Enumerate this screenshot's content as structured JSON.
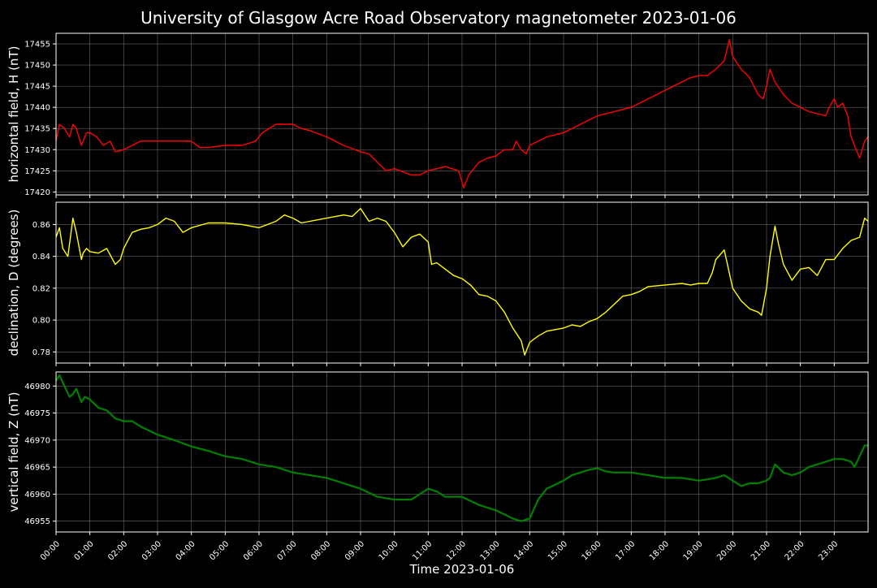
{
  "title": "University of Glasgow Acre Road Observatory magnetometer 2023-01-06",
  "xlabel": "Time 2023-01-06",
  "x_ticks": [
    "00:00",
    "01:00",
    "02:00",
    "03:00",
    "04:00",
    "05:00",
    "06:00",
    "07:00",
    "08:00",
    "09:00",
    "10:00",
    "11:00",
    "12:00",
    "13:00",
    "14:00",
    "15:00",
    "16:00",
    "17:00",
    "18:00",
    "19:00",
    "20:00",
    "21:00",
    "22:00",
    "23:00"
  ],
  "colors": {
    "background": "#000000",
    "grid": "#808080",
    "axes": "#ffffff",
    "H": "#ff0000",
    "D": "#ffff00",
    "Z": "#008000"
  },
  "chart_data": [
    {
      "type": "line",
      "ylabel": "horizontal field, H (nT)",
      "xlim": [
        0,
        24
      ],
      "ylim": [
        17419.3,
        17457.5
      ],
      "yticks": [
        17420,
        17425,
        17430,
        17435,
        17440,
        17445,
        17450,
        17455
      ],
      "ytick_decimals": 0,
      "grid": true,
      "series": [
        {
          "color": "#ff0000",
          "x": [
            0.0,
            0.1,
            0.25,
            0.4,
            0.5,
            0.6,
            0.75,
            0.9,
            1.0,
            1.2,
            1.4,
            1.6,
            1.75,
            2.0,
            2.25,
            2.5,
            3.0,
            3.5,
            4.0,
            4.25,
            4.5,
            5.0,
            5.5,
            5.9,
            6.1,
            6.5,
            7.0,
            7.25,
            7.5,
            8.0,
            8.5,
            9.0,
            9.25,
            9.5,
            9.75,
            10.0,
            10.5,
            10.75,
            11.0,
            11.5,
            11.9,
            12.05,
            12.2,
            12.5,
            12.75,
            13.0,
            13.25,
            13.5,
            13.6,
            13.75,
            13.9,
            14.0,
            14.25,
            14.5,
            15.0,
            15.25,
            15.5,
            15.75,
            16.0,
            16.5,
            17.0,
            17.5,
            18.0,
            18.5,
            18.75,
            19.0,
            19.25,
            19.5,
            19.75,
            19.9,
            20.0,
            20.25,
            20.5,
            20.75,
            20.9,
            21.0,
            21.1,
            21.25,
            21.5,
            21.75,
            22.0,
            22.25,
            22.5,
            22.75,
            22.85,
            23.0,
            23.1,
            23.25,
            23.4,
            23.5,
            23.6,
            23.75,
            23.9,
            24.0
          ],
          "y": [
            17432,
            17436,
            17435,
            17433,
            17436,
            17435,
            17431,
            17434,
            17434,
            17433,
            17431,
            17432,
            17429.5,
            17430,
            17431,
            17432,
            17432,
            17432,
            17432,
            17430.5,
            17430.5,
            17431,
            17431,
            17432,
            17434,
            17436,
            17436,
            17435,
            17434.5,
            17433,
            17431,
            17429.5,
            17429,
            17427,
            17425,
            17425.5,
            17424,
            17424,
            17425,
            17426,
            17425,
            17421,
            17424,
            17427,
            17428,
            17428.5,
            17430,
            17430,
            17432,
            17430,
            17429,
            17431,
            17432,
            17433,
            17434,
            17435,
            17436,
            17437,
            17438,
            17439,
            17440,
            17442,
            17444,
            17446,
            17447,
            17447.5,
            17447.5,
            17449,
            17451,
            17456,
            17452,
            17449,
            17447,
            17443,
            17442,
            17445,
            17449,
            17446,
            17443,
            17441,
            17440,
            17439,
            17438.5,
            17438,
            17440,
            17442,
            17440,
            17441,
            17438,
            17433,
            17431,
            17428,
            17432,
            17433
          ]
        }
      ]
    },
    {
      "type": "line",
      "ylabel": "declination, D (degrees)",
      "xlim": [
        0,
        24
      ],
      "ylim": [
        0.773,
        0.874
      ],
      "yticks": [
        0.78,
        0.8,
        0.82,
        0.84,
        0.86
      ],
      "ytick_decimals": 2,
      "grid": true,
      "series": [
        {
          "color": "#ffff00",
          "x": [
            0.0,
            0.1,
            0.2,
            0.35,
            0.5,
            0.6,
            0.75,
            0.8,
            0.9,
            1.0,
            1.25,
            1.5,
            1.75,
            1.9,
            2.0,
            2.25,
            2.5,
            2.75,
            3.0,
            3.25,
            3.5,
            3.75,
            4.0,
            4.5,
            5.0,
            5.5,
            6.0,
            6.5,
            6.75,
            7.0,
            7.25,
            7.5,
            8.0,
            8.5,
            8.75,
            9.0,
            9.25,
            9.5,
            9.75,
            10.0,
            10.25,
            10.5,
            10.75,
            11.0,
            11.1,
            11.25,
            11.5,
            11.75,
            12.0,
            12.25,
            12.5,
            12.75,
            13.0,
            13.25,
            13.5,
            13.75,
            13.85,
            14.0,
            14.25,
            14.5,
            15.0,
            15.25,
            15.5,
            15.75,
            16.0,
            16.25,
            16.5,
            16.75,
            17.0,
            17.25,
            17.5,
            18.0,
            18.5,
            18.75,
            19.0,
            19.25,
            19.4,
            19.5,
            19.75,
            20.0,
            20.25,
            20.5,
            20.75,
            20.85,
            21.0,
            21.1,
            21.25,
            21.35,
            21.5,
            21.75,
            22.0,
            22.25,
            22.5,
            22.75,
            23.0,
            23.25,
            23.5,
            23.75,
            23.9,
            24.0
          ],
          "y": [
            0.852,
            0.858,
            0.845,
            0.84,
            0.864,
            0.855,
            0.838,
            0.842,
            0.845,
            0.843,
            0.842,
            0.845,
            0.835,
            0.838,
            0.845,
            0.855,
            0.857,
            0.858,
            0.86,
            0.864,
            0.862,
            0.855,
            0.858,
            0.861,
            0.861,
            0.86,
            0.858,
            0.862,
            0.866,
            0.864,
            0.861,
            0.862,
            0.864,
            0.866,
            0.865,
            0.87,
            0.862,
            0.864,
            0.862,
            0.855,
            0.846,
            0.852,
            0.854,
            0.849,
            0.835,
            0.836,
            0.832,
            0.828,
            0.826,
            0.822,
            0.816,
            0.815,
            0.812,
            0.805,
            0.795,
            0.787,
            0.778,
            0.786,
            0.79,
            0.793,
            0.795,
            0.797,
            0.796,
            0.799,
            0.801,
            0.805,
            0.81,
            0.815,
            0.816,
            0.818,
            0.821,
            0.822,
            0.823,
            0.822,
            0.823,
            0.823,
            0.83,
            0.838,
            0.844,
            0.82,
            0.812,
            0.807,
            0.805,
            0.803,
            0.82,
            0.84,
            0.859,
            0.848,
            0.835,
            0.825,
            0.832,
            0.833,
            0.828,
            0.838,
            0.838,
            0.845,
            0.85,
            0.852,
            0.864,
            0.862
          ]
        }
      ]
    },
    {
      "type": "line",
      "ylabel": "vertical field, Z (nT)",
      "xlim": [
        0,
        24
      ],
      "ylim": [
        46953,
        46982.6
      ],
      "yticks": [
        46955,
        46960,
        46965,
        46970,
        46975,
        46980
      ],
      "ytick_decimals": 0,
      "grid": true,
      "series": [
        {
          "color": "#008000",
          "x": [
            0.0,
            0.1,
            0.25,
            0.4,
            0.5,
            0.6,
            0.75,
            0.85,
            1.0,
            1.25,
            1.5,
            1.75,
            2.0,
            2.25,
            2.5,
            3.0,
            3.5,
            4.0,
            4.5,
            5.0,
            5.5,
            6.0,
            6.5,
            7.0,
            7.5,
            8.0,
            8.5,
            9.0,
            9.5,
            10.0,
            10.5,
            10.75,
            11.0,
            11.25,
            11.5,
            12.0,
            12.5,
            13.0,
            13.5,
            13.75,
            14.0,
            14.25,
            14.5,
            15.0,
            15.25,
            15.5,
            15.75,
            16.0,
            16.25,
            16.5,
            17.0,
            17.5,
            18.0,
            18.5,
            19.0,
            19.5,
            19.75,
            20.0,
            20.25,
            20.5,
            20.75,
            21.0,
            21.1,
            21.25,
            21.5,
            21.75,
            22.0,
            22.25,
            22.5,
            22.75,
            23.0,
            23.25,
            23.5,
            23.6,
            23.75,
            23.9,
            24.0
          ],
          "y": [
            46981,
            46982,
            46980,
            46978,
            46978.5,
            46979.5,
            46977,
            46978,
            46977.5,
            46976,
            46975.5,
            46974,
            46973.5,
            46973.5,
            46972.5,
            46971,
            46970,
            46968.8,
            46968,
            46967,
            46966.5,
            46965.5,
            46965,
            46964,
            46963.5,
            46963,
            46962,
            46961,
            46959.5,
            46959,
            46959,
            46960,
            46961,
            46960.5,
            46959.5,
            46959.5,
            46958,
            46957,
            46955.5,
            46955,
            46955.5,
            46959,
            46961,
            46962.5,
            46963.5,
            46964,
            46964.5,
            46964.8,
            46964.2,
            46964,
            46964,
            46963.5,
            46963,
            46963,
            46962.5,
            46963,
            46963.5,
            46962.5,
            46961.5,
            46962,
            46962,
            46962.5,
            46963,
            46965.5,
            46964,
            46963.5,
            46964,
            46965,
            46965.5,
            46966,
            46966.5,
            46966.5,
            46966,
            46965,
            46967,
            46969,
            46969
          ]
        }
      ]
    }
  ]
}
